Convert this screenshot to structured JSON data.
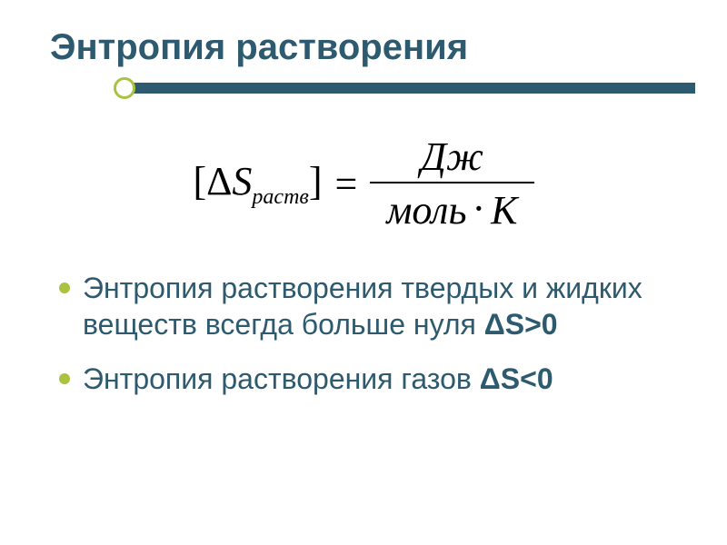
{
  "title": "Энтропия растворения",
  "colors": {
    "title": "#2d5a6e",
    "bar": "#2d5a6e",
    "accent": "#a9c23f",
    "background": "#ffffff",
    "formula": "#000000",
    "bullet_text": "#2d5a6e"
  },
  "formula": {
    "lhs_open": "[",
    "lhs_delta": "Δ",
    "lhs_S": "S",
    "lhs_sub": "раств",
    "lhs_close": "]",
    "eq": "=",
    "numerator": "Дж",
    "denom_left": "моль",
    "denom_dot": "·",
    "denom_right": "K"
  },
  "bullets": [
    {
      "text": "Энтропия растворения твердых и жидких веществ всегда больше нуля ",
      "strong": "ΔS>0"
    },
    {
      "text": "Энтропия растворения газов ",
      "strong": "ΔS<0"
    }
  ]
}
